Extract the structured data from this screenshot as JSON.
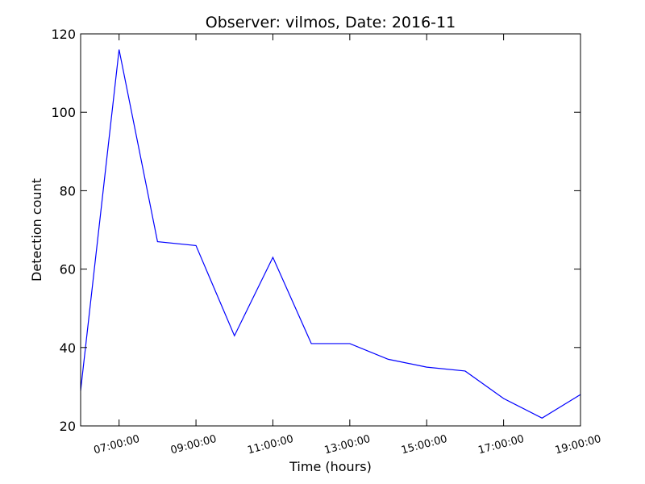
{
  "chart_data": {
    "type": "line",
    "title": "Observer: vilmos, Date: 2016-11",
    "xlabel": "Time (hours)",
    "ylabel": "Detection count",
    "x_range": [
      "06:00:00",
      "19:00:00"
    ],
    "ylim": [
      20,
      120
    ],
    "x_ticks": [
      "07:00:00",
      "09:00:00",
      "11:00:00",
      "13:00:00",
      "15:00:00",
      "17:00:00",
      "19:00:00"
    ],
    "y_ticks": [
      20,
      40,
      60,
      80,
      100,
      120
    ],
    "grid": false,
    "series": [
      {
        "color": "#0000ff",
        "points": [
          {
            "x": "06:00:00",
            "y": 29
          },
          {
            "x": "07:00:00",
            "y": 116
          },
          {
            "x": "08:00:00",
            "y": 67
          },
          {
            "x": "09:00:00",
            "y": 66
          },
          {
            "x": "10:00:00",
            "y": 43
          },
          {
            "x": "11:00:00",
            "y": 63
          },
          {
            "x": "12:00:00",
            "y": 41
          },
          {
            "x": "13:00:00",
            "y": 41
          },
          {
            "x": "14:00:00",
            "y": 37
          },
          {
            "x": "15:00:00",
            "y": 35
          },
          {
            "x": "16:00:00",
            "y": 34
          },
          {
            "x": "17:00:00",
            "y": 27
          },
          {
            "x": "18:00:00",
            "y": 22
          },
          {
            "x": "19:00:00",
            "y": 28
          }
        ]
      }
    ]
  }
}
